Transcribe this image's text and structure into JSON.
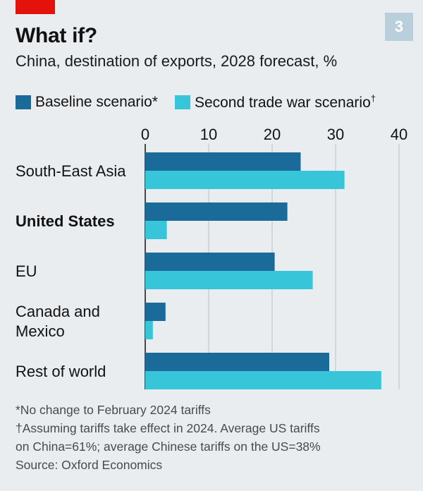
{
  "header": {
    "title": "What if?",
    "badge": "3",
    "subtitle": "China, destination of exports, 2028 forecast, %"
  },
  "legend": [
    {
      "label": "Baseline scenario*",
      "color": "#1a6b9a"
    },
    {
      "label": "Second trade war scenario",
      "sup": "†",
      "color": "#36c5d9"
    }
  ],
  "chart_data": {
    "type": "bar",
    "orientation": "horizontal",
    "title": "What if?",
    "subtitle": "China, destination of exports, 2028 forecast, %",
    "categories": [
      {
        "label": [
          "South-East Asia"
        ],
        "bold": false
      },
      {
        "label": [
          "United States"
        ],
        "bold": true
      },
      {
        "label": [
          "EU"
        ],
        "bold": false
      },
      {
        "label": [
          "Canada and",
          "Mexico"
        ],
        "bold": false
      },
      {
        "label": [
          "Rest of world"
        ],
        "bold": false
      }
    ],
    "series": [
      {
        "name": "Baseline scenario*",
        "color": "#1a6b9a",
        "values": [
          24.5,
          22.4,
          20.4,
          3.2,
          29.0
        ]
      },
      {
        "name": "Second trade war scenario†",
        "color": "#36c5d9",
        "values": [
          31.4,
          3.4,
          26.4,
          1.2,
          37.2
        ]
      }
    ],
    "xlim": [
      0,
      40
    ],
    "xticks": [
      "0",
      "10",
      "20",
      "30",
      "40"
    ],
    "grid": true,
    "legend_position": "top"
  },
  "footnotes": [
    "*No change to February 2024 tariffs",
    "†Assuming tariffs take effect in 2024. Average US tariffs",
    "on China=61%; average Chinese tariffs on the US=38%",
    "Source: Oxford Economics"
  ]
}
